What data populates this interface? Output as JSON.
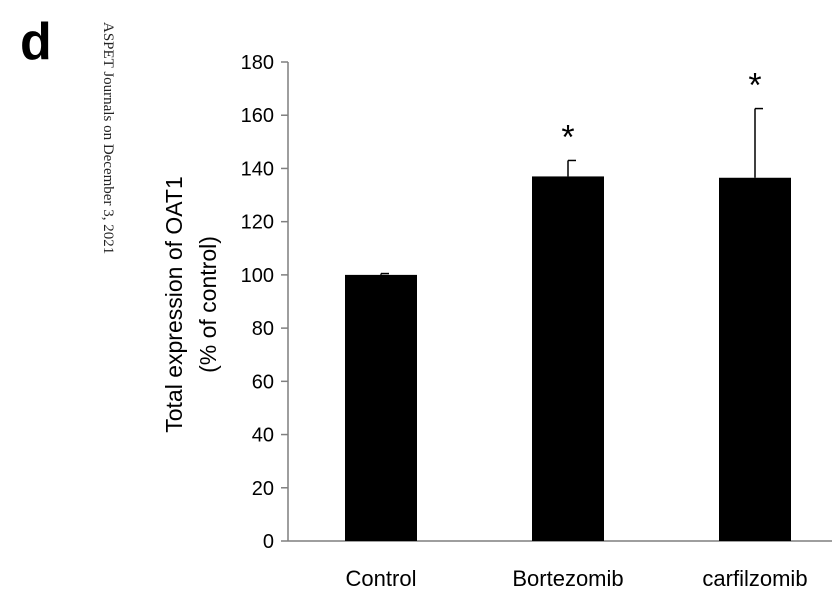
{
  "panel_label": "d",
  "watermark": "ASPET Journals on December 3, 2021",
  "chart_data": {
    "type": "bar",
    "categories": [
      "Control",
      "Bortezomib",
      "carfilzomib"
    ],
    "values": [
      100,
      137,
      136.5
    ],
    "errors": [
      0.5,
      6,
      26
    ],
    "significance": [
      "",
      "*",
      "*"
    ],
    "ylabel_lines": [
      "Total expression of OAT1",
      "(% of control)"
    ],
    "ylim": [
      0,
      180
    ],
    "yticks": [
      0,
      20,
      40,
      60,
      80,
      100,
      120,
      140,
      160,
      180
    ],
    "bar_color": "#000000",
    "grid": false
  }
}
